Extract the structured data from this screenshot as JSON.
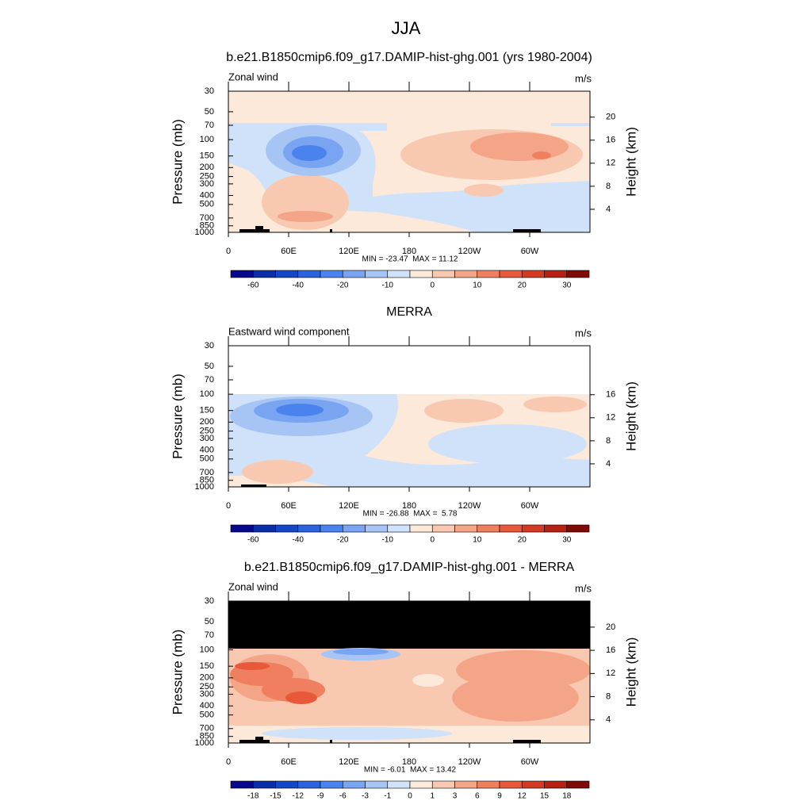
{
  "title": "JJA",
  "chart_data": [
    {
      "type": "contour",
      "title": "b.e21.B1850cmip6.f09_g17.DAMIP-hist-ghg.001 (yrs 1980-2004)",
      "left_string": "Zonal wind",
      "right_string": "m/s",
      "ylabel": "Pressure (mb)",
      "y2label": "Height (km)",
      "ylog": true,
      "ylim": [
        1000,
        30
      ],
      "yticks": [
        30,
        50,
        70,
        100,
        150,
        200,
        250,
        300,
        400,
        500,
        700,
        850,
        1000
      ],
      "y2lim": [
        0,
        24.5
      ],
      "y2ticks": [
        4,
        8,
        12,
        16,
        20
      ],
      "xlim": [
        0,
        360
      ],
      "xticks": [
        0,
        {
          "value": 60,
          "label": "60E"
        },
        {
          "value": 120,
          "label": "120E"
        },
        180,
        {
          "value": 240,
          "label": "120W"
        },
        {
          "value": 300,
          "label": "60W"
        }
      ],
      "stats": "MIN = -23.47  MAX = 11.12",
      "colorbar": {
        "levels": [
          -60,
          -50,
          -40,
          -30,
          -20,
          -15,
          -10,
          -5,
          0,
          5,
          10,
          15,
          20,
          25,
          30
        ],
        "ticks": [
          -60,
          -40,
          -20,
          -10,
          0,
          10,
          20,
          30
        ],
        "colors": [
          "#08088c",
          "#0b2ea8",
          "#1446c8",
          "#2a62e0",
          "#4a82ee",
          "#78a4f2",
          "#a6c4f4",
          "#d0e2fa",
          "#fde9d9",
          "#f8c9b0",
          "#f4a588",
          "#ef7f5e",
          "#e8583a",
          "#d43a22",
          "#b42012",
          "#7f0a06"
        ]
      }
    },
    {
      "type": "contour",
      "title": "MERRA",
      "left_string": "Eastward wind component",
      "right_string": "m/s",
      "ylabel": "Pressure (mb)",
      "y2label": "Height (km)",
      "ylog": true,
      "ylim": [
        1000,
        30
      ],
      "yticks": [
        30,
        50,
        70,
        100,
        150,
        200,
        250,
        300,
        400,
        500,
        700,
        850,
        1000
      ],
      "y2lim": [
        0,
        24.5
      ],
      "y2ticks": [
        4,
        8,
        12,
        16
      ],
      "xlim": [
        0,
        360
      ],
      "xticks": [
        0,
        {
          "value": 60,
          "label": "60E"
        },
        {
          "value": 120,
          "label": "120E"
        },
        180,
        {
          "value": 240,
          "label": "120W"
        },
        {
          "value": 300,
          "label": "60W"
        }
      ],
      "stats": "MIN = -26.88  MAX =  5.78",
      "colorbar": {
        "levels": [
          -60,
          -50,
          -40,
          -30,
          -20,
          -15,
          -10,
          -5,
          0,
          5,
          10,
          15,
          20,
          25,
          30
        ],
        "ticks": [
          -60,
          -40,
          -20,
          -10,
          0,
          10,
          20,
          30
        ],
        "colors": [
          "#08088c",
          "#0b2ea8",
          "#1446c8",
          "#2a62e0",
          "#4a82ee",
          "#78a4f2",
          "#a6c4f4",
          "#d0e2fa",
          "#fde9d9",
          "#f8c9b0",
          "#f4a588",
          "#ef7f5e",
          "#e8583a",
          "#d43a22",
          "#b42012",
          "#7f0a06"
        ]
      }
    },
    {
      "type": "contour",
      "title": "b.e21.B1850cmip6.f09_g17.DAMIP-hist-ghg.001 - MERRA",
      "left_string": "Zonal wind",
      "right_string": "m/s",
      "ylabel": "Pressure (mb)",
      "y2label": "Height (km)",
      "ylog": true,
      "ylim": [
        1000,
        30
      ],
      "yticks": [
        30,
        50,
        70,
        100,
        150,
        200,
        250,
        300,
        400,
        500,
        700,
        850,
        1000
      ],
      "y2lim": [
        0,
        24.5
      ],
      "y2ticks": [
        4,
        8,
        12,
        16,
        20
      ],
      "xlim": [
        0,
        360
      ],
      "xticks": [
        0,
        {
          "value": 60,
          "label": "60E"
        },
        {
          "value": 120,
          "label": "120E"
        },
        180,
        {
          "value": 240,
          "label": "120W"
        },
        {
          "value": 300,
          "label": "60W"
        }
      ],
      "stats": "MIN = -6.01  MAX = 13.42",
      "colorbar": {
        "levels": [
          -18,
          -15,
          -12,
          -9,
          -6,
          -3,
          -1,
          0,
          1,
          3,
          6,
          9,
          12,
          15,
          18
        ],
        "ticks": [
          -18,
          -15,
          -12,
          -9,
          -6,
          -3,
          -1,
          0,
          1,
          3,
          6,
          9,
          12,
          15,
          18
        ],
        "colors": [
          "#08088c",
          "#0b2ea8",
          "#1446c8",
          "#2a62e0",
          "#4a82ee",
          "#78a4f2",
          "#a6c4f4",
          "#d0e2fa",
          "#fde9d9",
          "#f8c9b0",
          "#f4a588",
          "#ef7f5e",
          "#e8583a",
          "#d43a22",
          "#b42012",
          "#7f0a06"
        ]
      }
    }
  ]
}
